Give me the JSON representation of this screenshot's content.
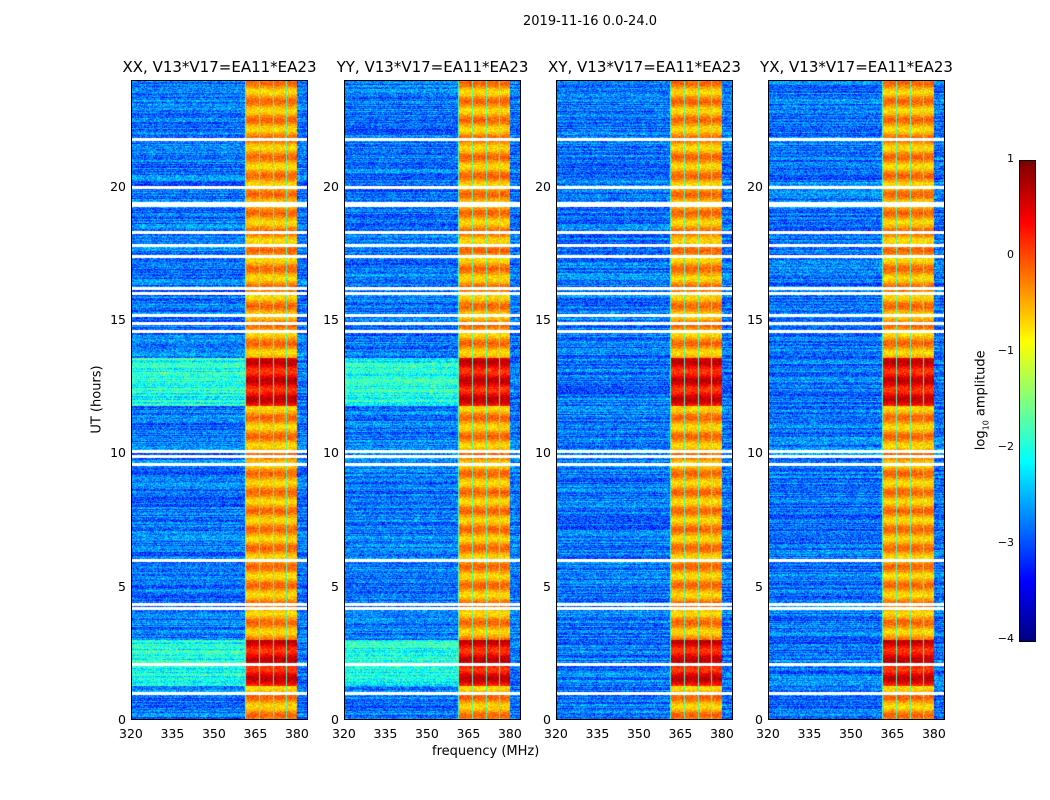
{
  "chart_data": {
    "type": "heatmap",
    "title": "2019-11-16 0.0-24.0",
    "xlabel": "frequency (MHz)",
    "ylabel": "UT (hours)",
    "xlim": [
      320,
      384
    ],
    "ylim": [
      0,
      24
    ],
    "xticks": [
      "320",
      "335",
      "350",
      "365",
      "380"
    ],
    "yticks": [
      "0",
      "5",
      "10",
      "15",
      "20"
    ],
    "panels": [
      {
        "title": "XX, V13*V17=EA11*EA23"
      },
      {
        "title": "YY, V13*V17=EA11*EA23"
      },
      {
        "title": "XY, V13*V17=EA11*EA23"
      },
      {
        "title": "YX, V13*V17=EA11*EA23"
      }
    ],
    "colorbar": {
      "label": "log10 amplitude",
      "range": [
        -4,
        1
      ],
      "ticks": [
        "1",
        "0",
        "−1",
        "−2",
        "−3",
        "−4"
      ],
      "colormap": "jet"
    },
    "features": {
      "background_log_amp": -2.8,
      "rfi_band_MHz": [
        361,
        381
      ],
      "rfi_band_log_amp": -0.4,
      "strong_rfi_hours": [
        [
          1.3,
          3.0
        ],
        [
          11.8,
          13.6
        ]
      ],
      "flagged_hours": [
        1.0,
        2.1,
        4.2,
        4.35,
        6.0,
        9.6,
        9.9,
        10.1,
        14.6,
        14.9,
        15.2,
        16.0,
        16.2,
        17.4,
        17.8,
        18.3,
        19.3,
        19.4,
        20.0,
        21.8
      ]
    }
  }
}
